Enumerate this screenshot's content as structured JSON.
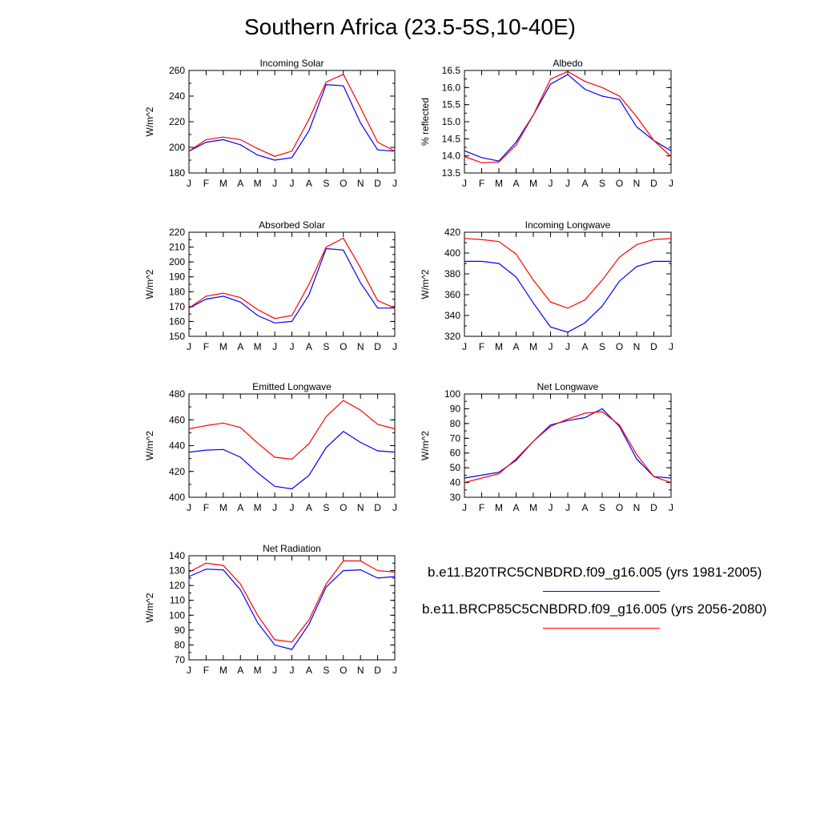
{
  "title": "Southern Africa (23.5-5S,10-40E)",
  "months": [
    "J",
    "F",
    "M",
    "A",
    "M",
    "J",
    "J",
    "A",
    "S",
    "O",
    "N",
    "D",
    "J"
  ],
  "legend": [
    {
      "label": "b.e11.B20TRC5CNBDRD.f09_g16.005 (yrs 1981-2005)",
      "color": "#0000ff"
    },
    {
      "label": "b.e11.BRCP85C5CNBDRD.f09_g16.005 (yrs 2056-2080)",
      "color": "#ff0000"
    }
  ],
  "chart_data": [
    {
      "type": "line",
      "title": "Incoming Solar",
      "ylabel": "W/m^2",
      "ylim": [
        180,
        260
      ],
      "yticks": [
        180,
        200,
        220,
        240,
        260
      ],
      "yminor": 10,
      "series": [
        {
          "name": "b.e11.B20TRC5CNBDRD.f09_g16.005 (yrs 1981-2005)",
          "color": "#0000ff",
          "values": [
            197,
            204,
            206,
            202,
            194,
            190,
            192,
            213,
            249,
            248,
            219,
            198,
            197
          ]
        },
        {
          "name": "b.e11.BRCP85C5CNBDRD.f09_g16.005 (yrs 2056-2080)",
          "color": "#ff0000",
          "values": [
            197,
            206,
            208,
            206,
            199,
            193,
            197,
            222,
            251,
            257,
            231,
            204,
            197
          ]
        }
      ]
    },
    {
      "type": "line",
      "title": "Albedo",
      "ylabel": "% reflected",
      "ylim": [
        13.5,
        16.5
      ],
      "yticks": [
        13.5,
        14.0,
        14.5,
        15.0,
        15.5,
        16.0,
        16.5
      ],
      "yminor": 0.25,
      "series": [
        {
          "name": "b.e11.B20TRC5CNBDRD.f09_g16.005 (yrs 1981-2005)",
          "color": "#0000ff",
          "values": [
            14.15,
            13.95,
            13.85,
            14.4,
            15.2,
            16.1,
            16.38,
            15.95,
            15.75,
            15.65,
            14.85,
            14.45,
            14.15
          ]
        },
        {
          "name": "b.e11.BRCP85C5CNBDRD.f09_g16.005 (yrs 2056-2080)",
          "color": "#ff0000",
          "values": [
            13.98,
            13.8,
            13.82,
            14.32,
            15.2,
            16.25,
            16.47,
            16.18,
            16.0,
            15.75,
            15.15,
            14.45,
            13.98
          ]
        }
      ]
    },
    {
      "type": "line",
      "title": "Absorbed Solar",
      "ylabel": "W/m^2",
      "ylim": [
        150,
        220
      ],
      "yticks": [
        150,
        160,
        170,
        180,
        190,
        200,
        210,
        220
      ],
      "yminor": 5,
      "series": [
        {
          "name": "b.e11.B20TRC5CNBDRD.f09_g16.005 (yrs 1981-2005)",
          "color": "#0000ff",
          "values": [
            169,
            175,
            177,
            173,
            164,
            159,
            160,
            178,
            209,
            208,
            186,
            169,
            169
          ]
        },
        {
          "name": "b.e11.BRCP85C5CNBDRD.f09_g16.005 (yrs 2056-2080)",
          "color": "#ff0000",
          "values": [
            169,
            177,
            179,
            176,
            168,
            162,
            164,
            185,
            210,
            216,
            196,
            174,
            169
          ]
        }
      ]
    },
    {
      "type": "line",
      "title": "Incoming Longwave",
      "ylabel": "W/m^2",
      "ylim": [
        320,
        420
      ],
      "yticks": [
        320,
        340,
        360,
        380,
        400,
        420
      ],
      "yminor": 10,
      "series": [
        {
          "name": "b.e11.B20TRC5CNBDRD.f09_g16.005 (yrs 1981-2005)",
          "color": "#0000ff",
          "values": [
            392,
            392,
            390,
            377,
            352,
            329,
            324,
            333,
            349,
            373,
            387,
            392,
            392
          ]
        },
        {
          "name": "b.e11.BRCP85C5CNBDRD.f09_g16.005 (yrs 2056-2080)",
          "color": "#ff0000",
          "values": [
            414,
            413,
            411,
            399,
            374,
            353,
            347,
            355,
            374,
            396,
            408,
            413,
            414
          ]
        }
      ]
    },
    {
      "type": "line",
      "title": "Emitted Longwave",
      "ylabel": "W/m^2",
      "ylim": [
        400,
        480
      ],
      "yticks": [
        400,
        420,
        440,
        460,
        480
      ],
      "yminor": 10,
      "series": [
        {
          "name": "b.e11.B20TRC5CNBDRD.f09_g16.005 (yrs 1981-2005)",
          "color": "#0000ff",
          "values": [
            435,
            436.5,
            437,
            431,
            419,
            408.5,
            406.5,
            417,
            438.5,
            451,
            442.5,
            436,
            435
          ]
        },
        {
          "name": "b.e11.BRCP85C5CNBDRD.f09_g16.005 (yrs 2056-2080)",
          "color": "#ff0000",
          "values": [
            453,
            455.5,
            457.5,
            454,
            442,
            431,
            429.5,
            441.5,
            462.5,
            475,
            467.5,
            456.5,
            453
          ]
        }
      ]
    },
    {
      "type": "line",
      "title": "Net Longwave",
      "ylabel": "W/m^2",
      "ylim": [
        30,
        100
      ],
      "yticks": [
        30,
        40,
        50,
        60,
        70,
        80,
        90,
        100
      ],
      "yminor": 5,
      "series": [
        {
          "name": "b.e11.B20TRC5CNBDRD.f09_g16.005 (yrs 1981-2005)",
          "color": "#0000ff",
          "values": [
            43,
            45,
            47,
            55,
            68,
            79,
            82,
            84,
            90,
            78,
            56,
            44,
            43
          ]
        },
        {
          "name": "b.e11.BRCP85C5CNBDRD.f09_g16.005 (yrs 2056-2080)",
          "color": "#ff0000",
          "values": [
            40,
            43,
            46,
            56,
            68,
            78,
            83,
            87,
            88,
            79,
            59,
            44,
            40
          ]
        }
      ]
    },
    {
      "type": "line",
      "title": "Net Radiation",
      "ylabel": "W/m^2",
      "ylim": [
        70,
        140
      ],
      "yticks": [
        70,
        80,
        90,
        100,
        110,
        120,
        130,
        140
      ],
      "yminor": 5,
      "series": [
        {
          "name": "b.e11.B20TRC5CNBDRD.f09_g16.005 (yrs 1981-2005)",
          "color": "#0000ff",
          "values": [
            126,
            131,
            130.5,
            117,
            95,
            80,
            77,
            94,
            119,
            130,
            130.5,
            125,
            126
          ]
        },
        {
          "name": "b.e11.BRCP85C5CNBDRD.f09_g16.005 (yrs 2056-2080)",
          "color": "#ff0000",
          "values": [
            129,
            135,
            133.5,
            121,
            100,
            83.5,
            82,
            97,
            121,
            136.5,
            136.5,
            130,
            129
          ]
        }
      ]
    }
  ]
}
